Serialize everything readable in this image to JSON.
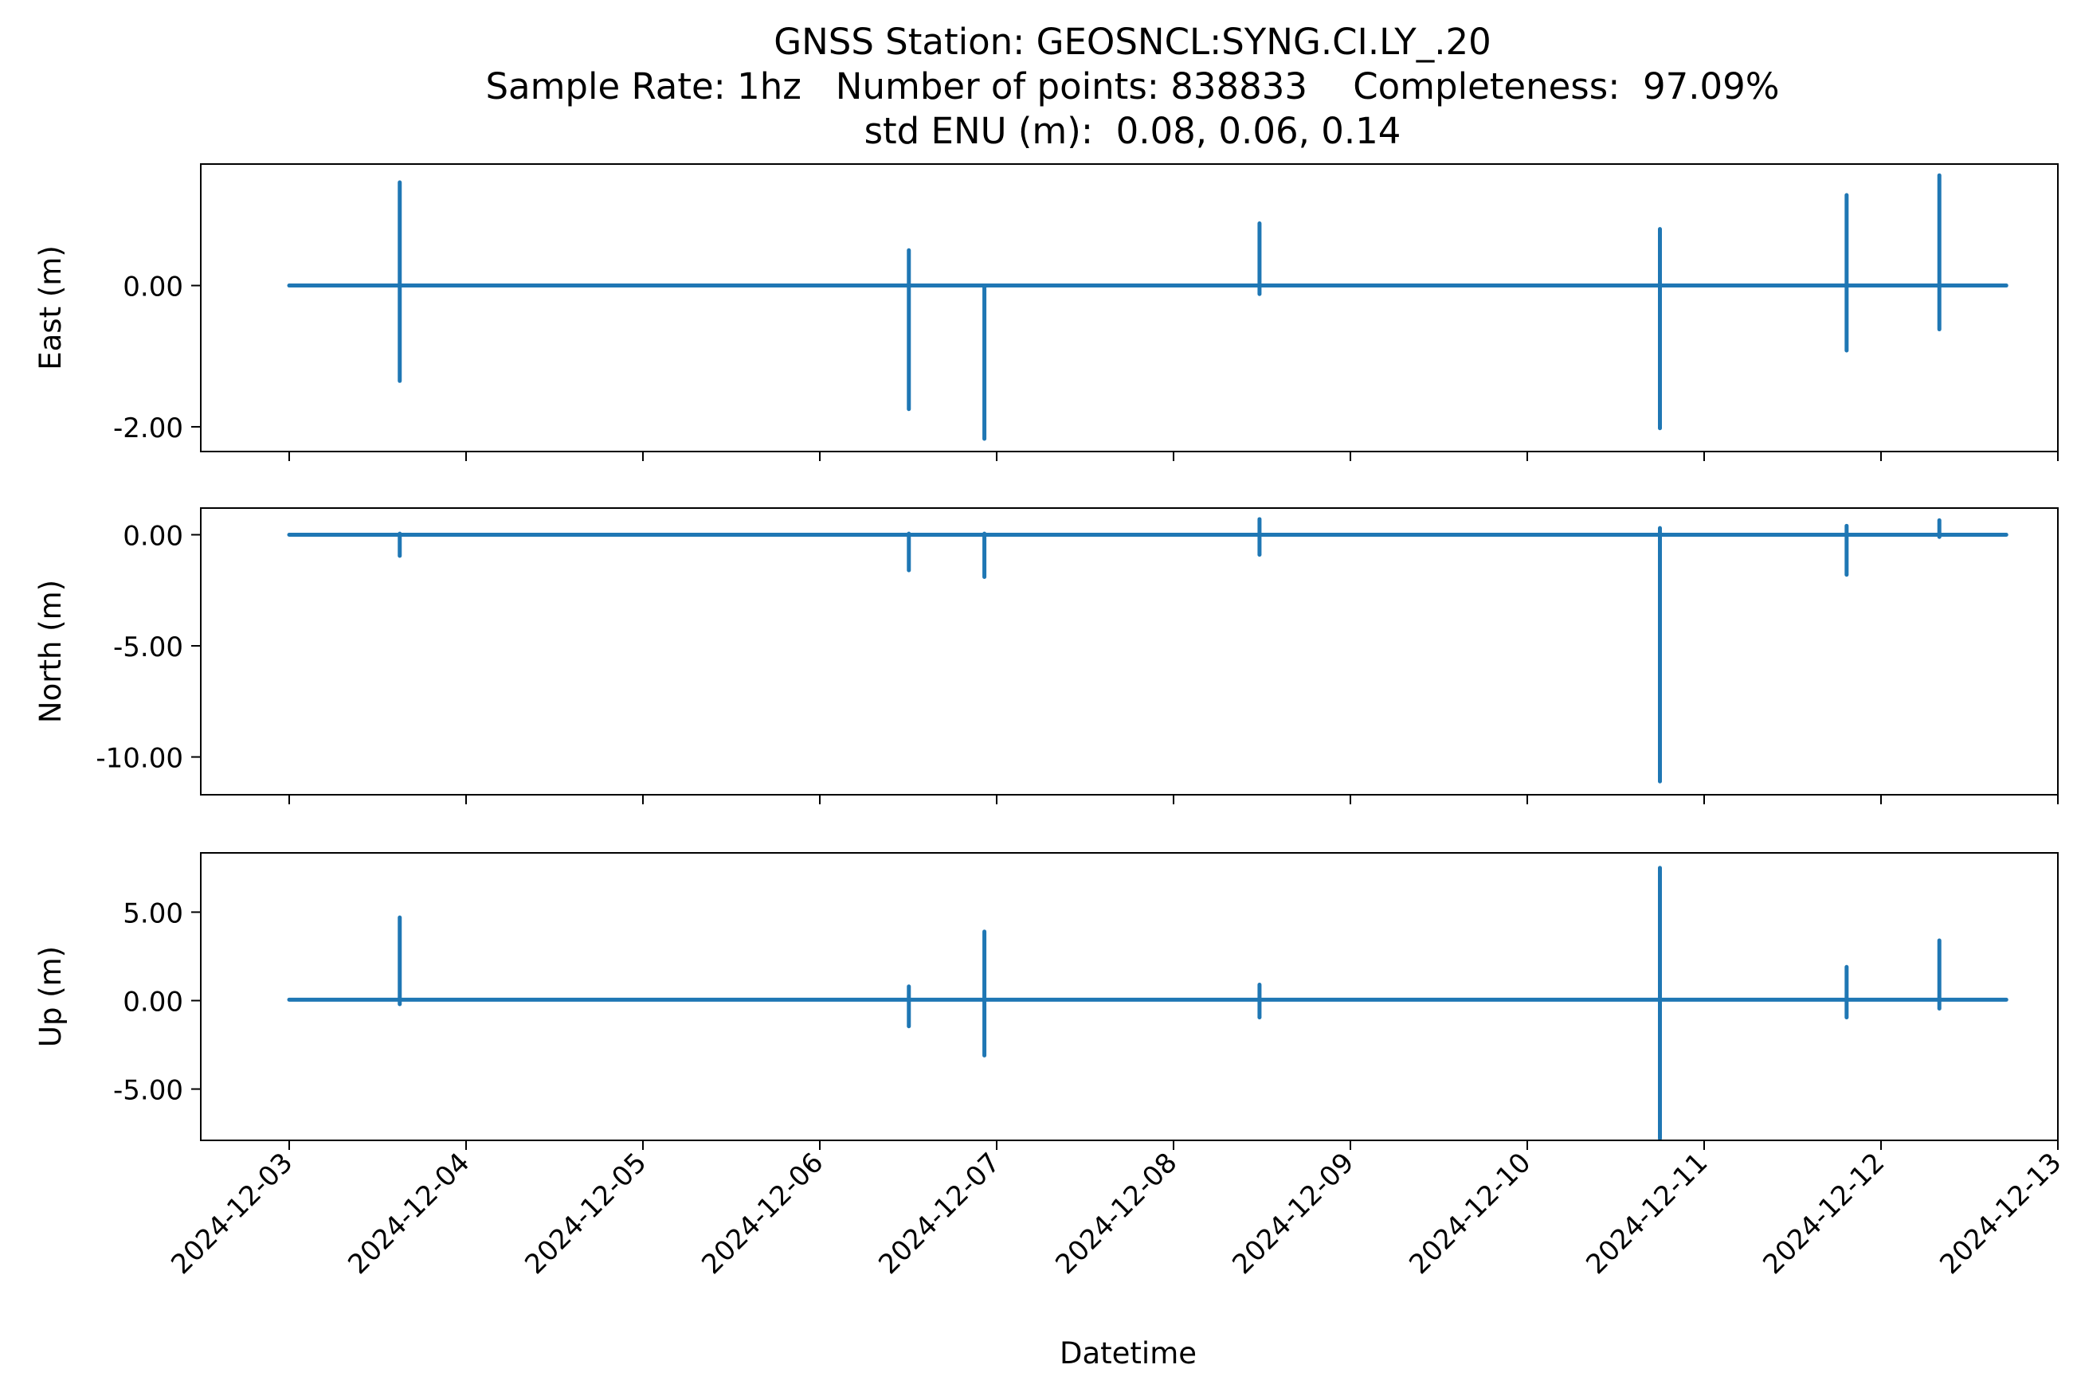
{
  "chart_data": {
    "type": "line",
    "title": "GNSS Station: GEOSNCL:SYNG.CI.LY_.20",
    "subtitle_1": "Sample Rate: 1hz   Number of points: 838833    Completeness:  97.09%",
    "subtitle_2": "std ENU (m):  0.08, 0.06, 0.14",
    "xlabel": "Datetime",
    "x_ticks": [
      "2024-12-03",
      "2024-12-04",
      "2024-12-05",
      "2024-12-06",
      "2024-12-07",
      "2024-12-08",
      "2024-12-09",
      "2024-12-10",
      "2024-12-11",
      "2024-12-12",
      "2024-12-13"
    ],
    "x_range": [
      "2024-12-02T12:00",
      "2024-12-13T00:00"
    ],
    "data_x_range": [
      "2024-12-03T00:00",
      "2024-12-12T17:00"
    ],
    "line_color": "#1f77b4",
    "grid": false,
    "panels": [
      {
        "ylabel": "East (m)",
        "ylim": [
          -2.35,
          1.72
        ],
        "yticks": [
          0,
          -2
        ],
        "ytick_labels": [
          "0.00",
          "-2.00"
        ],
        "baseline": 0,
        "spikes": [
          {
            "x": "2024-12-03T15:00",
            "max": 1.46,
            "min": -1.35
          },
          {
            "x": "2024-12-06T12:05",
            "max": 0.5,
            "min": -1.75
          },
          {
            "x": "2024-12-06T22:20",
            "max": 0.0,
            "min": -2.17
          },
          {
            "x": "2024-12-08T11:40",
            "max": 0.88,
            "min": -0.12
          },
          {
            "x": "2024-12-10T18:00",
            "max": 0.8,
            "min": -2.02
          },
          {
            "x": "2024-12-11T19:20",
            "max": 1.28,
            "min": -0.92
          },
          {
            "x": "2024-12-12T07:55",
            "max": 1.56,
            "min": -0.62
          }
        ]
      },
      {
        "ylabel": "North (m)",
        "ylim": [
          -11.7,
          1.2
        ],
        "yticks": [
          0,
          -5,
          -10
        ],
        "ytick_labels": [
          "0.00",
          "-5.00",
          "-10.00"
        ],
        "baseline": 0,
        "spikes": [
          {
            "x": "2024-12-03T15:00",
            "max": 0.05,
            "min": -0.95
          },
          {
            "x": "2024-12-06T12:05",
            "max": 0.05,
            "min": -1.6
          },
          {
            "x": "2024-12-06T22:20",
            "max": 0.05,
            "min": -1.9
          },
          {
            "x": "2024-12-08T11:40",
            "max": 0.7,
            "min": -0.9
          },
          {
            "x": "2024-12-10T18:00",
            "max": 0.3,
            "min": -11.1
          },
          {
            "x": "2024-12-11T19:20",
            "max": 0.4,
            "min": -1.8
          },
          {
            "x": "2024-12-12T07:55",
            "max": 0.65,
            "min": -0.1
          }
        ]
      },
      {
        "ylabel": "Up (m)",
        "ylim": [
          -7.9,
          8.35
        ],
        "yticks": [
          5,
          0,
          -5
        ],
        "ytick_labels": [
          "5.00",
          "0.00",
          "-5.00"
        ],
        "baseline": 0.05,
        "spikes": [
          {
            "x": "2024-12-03T15:00",
            "max": 4.7,
            "min": -0.2
          },
          {
            "x": "2024-12-06T12:05",
            "max": 0.8,
            "min": -1.45
          },
          {
            "x": "2024-12-06T22:20",
            "max": 3.9,
            "min": -3.1
          },
          {
            "x": "2024-12-08T11:40",
            "max": 0.9,
            "min": -0.95
          },
          {
            "x": "2024-12-10T18:00",
            "max": 7.5,
            "min": -7.8
          },
          {
            "x": "2024-12-11T19:20",
            "max": 1.9,
            "min": -0.95
          },
          {
            "x": "2024-12-12T07:55",
            "max": 3.4,
            "min": -0.45
          }
        ]
      }
    ]
  }
}
